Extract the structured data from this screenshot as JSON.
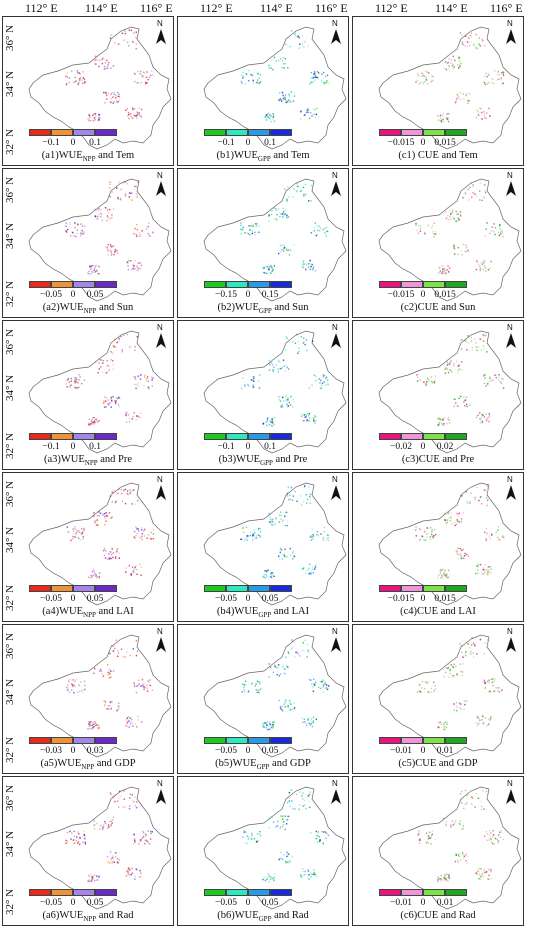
{
  "longitude_labels": [
    "112° E",
    "114° E",
    "116° E"
  ],
  "latitude_labels": [
    "36° N",
    "34° N",
    "32° N"
  ],
  "north_arrow_label": "N",
  "colors": {
    "npp": [
      "#e82a1a",
      "#f0923a",
      "#a585e8",
      "#6a2ac8"
    ],
    "gpp": [
      "#1ec81e",
      "#2ee8c0",
      "#2a9ae8",
      "#1a2ad8"
    ],
    "cue": [
      "#e8157f",
      "#ee95d8",
      "#7ee04a",
      "#1ea81e"
    ]
  },
  "panels": [
    {
      "id": "a1",
      "prefix": "(a1)",
      "metric": "WUE",
      "sub": "NPP",
      "suffix": " and Tem",
      "palette": "npp",
      "ticks": [
        "−0.1",
        "0",
        "0.1"
      ]
    },
    {
      "id": "b1",
      "prefix": "(b1)",
      "metric": "WUE",
      "sub": "GPP",
      "suffix": " and Tem",
      "palette": "gpp",
      "ticks": [
        "−0.1",
        "0",
        "0.1"
      ]
    },
    {
      "id": "c1",
      "prefix": "(c1)",
      "metric": " CUE",
      "sub": "",
      "suffix": " and Tem",
      "palette": "cue",
      "ticks": [
        "−0.015",
        "0",
        "0.015"
      ]
    },
    {
      "id": "a2",
      "prefix": "(a2)",
      "metric": "WUE",
      "sub": "NPP",
      "suffix": " and Sun",
      "palette": "npp",
      "ticks": [
        "−0.05",
        "0",
        "0.05"
      ]
    },
    {
      "id": "b2",
      "prefix": "(b2)",
      "metric": "WUE",
      "sub": "GPP",
      "suffix": " and Sun",
      "palette": "gpp",
      "ticks": [
        "−0.15",
        "0",
        "0.15"
      ]
    },
    {
      "id": "c2",
      "prefix": "(c2)",
      "metric": "CUE",
      "sub": "",
      "suffix": " and Sun",
      "palette": "cue",
      "ticks": [
        "−0.015",
        "0",
        "0.015"
      ]
    },
    {
      "id": "a3",
      "prefix": "(a3)",
      "metric": "WUE",
      "sub": "NPP",
      "suffix": " and Pre",
      "palette": "npp",
      "ticks": [
        "−0.1",
        "0",
        "0.1"
      ]
    },
    {
      "id": "b3",
      "prefix": "(b3)",
      "metric": "WUE",
      "sub": "GPP",
      "suffix": " and Pre",
      "palette": "gpp",
      "ticks": [
        "−0.1",
        "0",
        "0.1"
      ]
    },
    {
      "id": "c3",
      "prefix": "(c3)",
      "metric": "CUE",
      "sub": "",
      "suffix": " and Pre",
      "palette": "cue",
      "ticks": [
        "−0.02",
        "0",
        "0.02"
      ]
    },
    {
      "id": "a4",
      "prefix": "(a4)",
      "metric": "WUE",
      "sub": "NPP",
      "suffix": " and LAI",
      "palette": "npp",
      "ticks": [
        "−0.05",
        "0",
        "0.05"
      ]
    },
    {
      "id": "b4",
      "prefix": "(b4)",
      "metric": "WUE",
      "sub": "GPP",
      "suffix": " and LAI",
      "palette": "gpp",
      "ticks": [
        "−0.05",
        "0",
        "0.05"
      ]
    },
    {
      "id": "c4",
      "prefix": "(c4)",
      "metric": "CUE",
      "sub": "",
      "suffix": " and LAI",
      "palette": "cue",
      "ticks": [
        "−0.015",
        "0",
        "0.015"
      ]
    },
    {
      "id": "a5",
      "prefix": "(a5)",
      "metric": "WUE",
      "sub": "NPP",
      "suffix": " and GDP",
      "palette": "npp",
      "ticks": [
        "−0.03",
        "0",
        "0.03"
      ]
    },
    {
      "id": "b5",
      "prefix": "(b5)",
      "metric": "WUE",
      "sub": "GPP",
      "suffix": " and GDP",
      "palette": "gpp",
      "ticks": [
        "−0.05",
        "0",
        "0.05"
      ]
    },
    {
      "id": "c5",
      "prefix": "(c5)",
      "metric": "CUE",
      "sub": "",
      "suffix": " and GDP",
      "palette": "cue",
      "ticks": [
        "−0.01",
        "0",
        "0.01"
      ]
    },
    {
      "id": "a6",
      "prefix": "(a6)",
      "metric": "WUE",
      "sub": "NPP",
      "suffix": " and Rad",
      "palette": "npp",
      "ticks": [
        "−0.05",
        "0",
        "0.05"
      ]
    },
    {
      "id": "b6",
      "prefix": "(b6)",
      "metric": "WUE",
      "sub": "GPP",
      "suffix": " and Rad",
      "palette": "gpp",
      "ticks": [
        "−0.05",
        "0",
        "0.05"
      ]
    },
    {
      "id": "c6",
      "prefix": "(c6)",
      "metric": "CUE",
      "sub": "",
      "suffix": " and Rad",
      "palette": "cue",
      "ticks": [
        "−0.01",
        "0",
        "0.01"
      ]
    }
  ]
}
